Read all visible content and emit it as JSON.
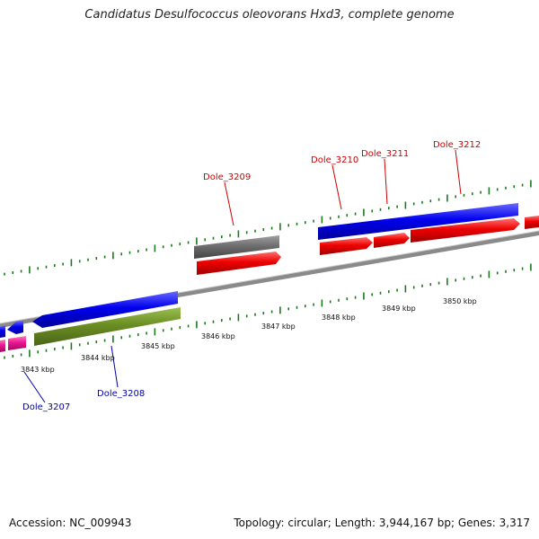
{
  "title": "Candidatus Desulfococcus oleovorans Hxd3, complete genome",
  "footer": {
    "accession": "Accession: NC_009943",
    "summary": "Topology: circular; Length: 3,944,167 bp; Genes: 3,317"
  },
  "colors": {
    "backbone": "#8a8a8a",
    "tick": "#1a7a1a",
    "forward_gene": "#0000ee",
    "reverse_gene": "#ee0000",
    "rna_gene": "#6e6e6e",
    "olive_gene": "#6b8e23",
    "pink_gene": "#ee1493",
    "label_top": "#cc0000",
    "label_bottom": "#0000aa"
  },
  "genome": {
    "scale_labels": [
      "3843 kbp",
      "3844 kbp",
      "3845 kbp",
      "3846 kbp",
      "3847 kbp",
      "3848 kbp",
      "3849 kbp",
      "3850 kbp"
    ],
    "gene_labels_top": [
      "Dole_3209",
      "Dole_3210",
      "Dole_3211",
      "Dole_3212"
    ],
    "gene_labels_bottom": [
      "Dole_3207",
      "Dole_3208"
    ]
  }
}
